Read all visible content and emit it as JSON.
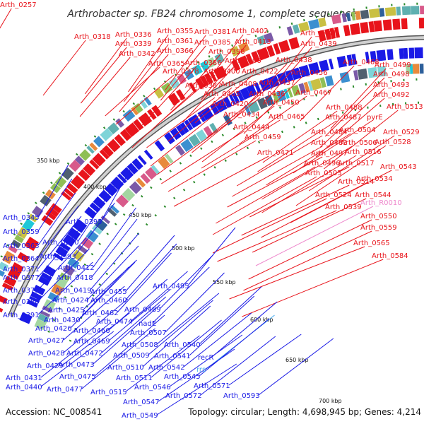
{
  "title": "Arthrobacter sp. FB24 chromosome 1, complete sequence",
  "accession": "Accession: NC_008541",
  "summary": "Topology: circular; Length: 4,698,945 bp; Genes: 4,214",
  "colors": {
    "forward": "#e8141b",
    "reverse": "#1a1ae6",
    "rna": "#ee88cc",
    "misc": "#44aaee",
    "backbone": "#888888",
    "tick_mark": "#2a8a2a"
  },
  "ticks": [
    "350 kbp",
    "400 kbp",
    "450 kbp",
    "500 kbp",
    "550 kbp",
    "600 kbp",
    "650 kbp",
    "700 kbp"
  ],
  "labels_top": [
    "Arth_0257",
    "Arth_0318",
    "Arth_0336",
    "Arth_0355",
    "Arth_0381",
    "Arth_0402",
    "Arth_0441",
    "Arth_0339",
    "Arth_0361",
    "Arth_0385",
    "Arth_0413",
    "Arth_0439",
    "Arth_0342",
    "Arth_0366",
    "Arth_0398",
    "Arth_0365",
    "Arth_0386",
    "Arth_0406",
    "Arth_0438",
    "Arth_0468",
    "Arth_0499",
    "Arth_0378",
    "Arth_0400",
    "Arth_0422",
    "Arth_0456",
    "Arth_0498",
    "Arth_0387",
    "Arth_0408",
    "Arth_0437",
    "Arth_0493",
    "Arth_0405",
    "Arth_0436",
    "Arth_0467",
    "Arth_0492",
    "Arth_0420",
    "Arth_0450",
    "Arth_0488",
    "Arth_0513",
    "Arth_0434",
    "Arth_0465",
    "Arth_0487",
    "pyrE",
    "Arth_0444",
    "Arth_0484",
    "Arth_0504",
    "Arth_0459",
    "Arth_0483",
    "Arth_0506",
    "Arth_0529",
    "Arth_0528",
    "Arth_0471",
    "Arth_0497",
    "Arth_0516",
    "Arth_0496",
    "Arth_0517",
    "Arth_0543",
    "Arth_0505",
    "Arth_0514",
    "Arth_0534",
    "Arth_0524",
    "Arth_0544",
    "Arth_0539",
    "Arth_R0010",
    "Arth_0550",
    "Arth_0559",
    "Arth_0565",
    "Arth_0584"
  ],
  "labels_bottom": [
    "Arth_0345",
    "Arth_0395",
    "Arth_0359",
    "Arth_0363",
    "Arth_0390",
    "Arth_0364",
    "Arth_0393",
    "Arth_0371",
    "Arth_0412",
    "Arth_0377",
    "Arth_0418",
    "Arth_0379",
    "Arth_0419",
    "Arth_0455",
    "Arth_0388",
    "Arth_0424",
    "Arth_0460",
    "Arth_0495",
    "Arth_0425",
    "Arth_0462",
    "Arth_0489",
    "Arth_0391",
    "Arth_0430",
    "Arth_0474",
    "nadE",
    "Arth_0426",
    "Arth_0466",
    "Arth_0507",
    "Arth_0427",
    "Arth_0469",
    "Arth_0508",
    "Arth_0540",
    "Arth_0428",
    "Arth_0472",
    "Arth_0509",
    "Arth_0541",
    "recR",
    "Arth_0429",
    "Arth_0473",
    "Arth_0510",
    "Arth_0542",
    "rrs",
    "Arth_0431",
    "Arth_0475",
    "Arth_0511",
    "Arth_0545",
    "Arth_0440",
    "Arth_0477",
    "Arth_0515",
    "Arth_0546",
    "Arth_0571",
    "Arth_0572",
    "Arth_0593",
    "Arth_0547",
    "Arth_0549"
  ]
}
